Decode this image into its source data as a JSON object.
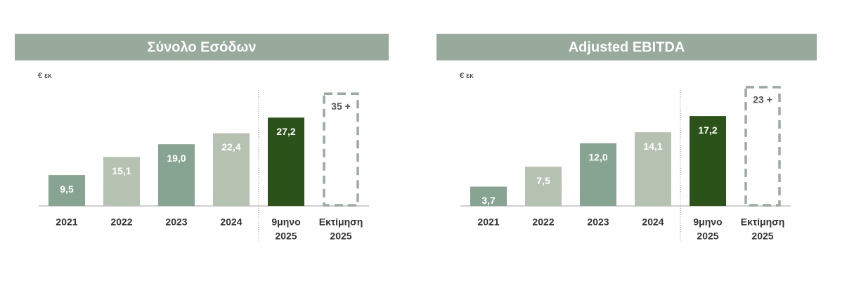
{
  "chart_data": [
    {
      "type": "bar",
      "title": "Σύνολο Εσόδων",
      "unit": "€ εκ",
      "categories": [
        "2021",
        "2022",
        "2023",
        "2024",
        [
          "9μηνο",
          "2025"
        ],
        [
          "Εκτίμηση",
          "2025"
        ]
      ],
      "values": [
        9.5,
        15.1,
        19.0,
        22.4,
        27.2,
        35
      ],
      "value_labels": [
        "9,5",
        "15,1",
        "19,0",
        "22,4",
        "27,2",
        "35 +"
      ],
      "colors": [
        "#86a491",
        "#b6c2b1",
        "#86a491",
        "#b6c2b1",
        "#2b5218",
        "#9aab9e"
      ],
      "bar_styles": [
        "solid",
        "solid",
        "solid",
        "solid",
        "solid",
        "dashed"
      ],
      "ylim": [
        0,
        37
      ]
    },
    {
      "type": "bar",
      "title": "Adjusted EBITDA",
      "unit": "€ εκ",
      "categories": [
        "2021",
        "2022",
        "2023",
        "2024",
        [
          "9μηνο",
          "2025"
        ],
        [
          "Εκτίμηση",
          "2025"
        ]
      ],
      "values": [
        3.7,
        7.5,
        12.0,
        14.1,
        17.2,
        23
      ],
      "value_labels": [
        "3,7",
        "7,5",
        "12,0",
        "14,1",
        "17,2",
        "23 +"
      ],
      "colors": [
        "#86a491",
        "#b6c2b1",
        "#86a491",
        "#b6c2b1",
        "#2b5218",
        "#9aab9e"
      ],
      "bar_styles": [
        "solid",
        "solid",
        "solid",
        "solid",
        "solid",
        "dashed"
      ],
      "ylim": [
        0,
        23
      ]
    }
  ]
}
